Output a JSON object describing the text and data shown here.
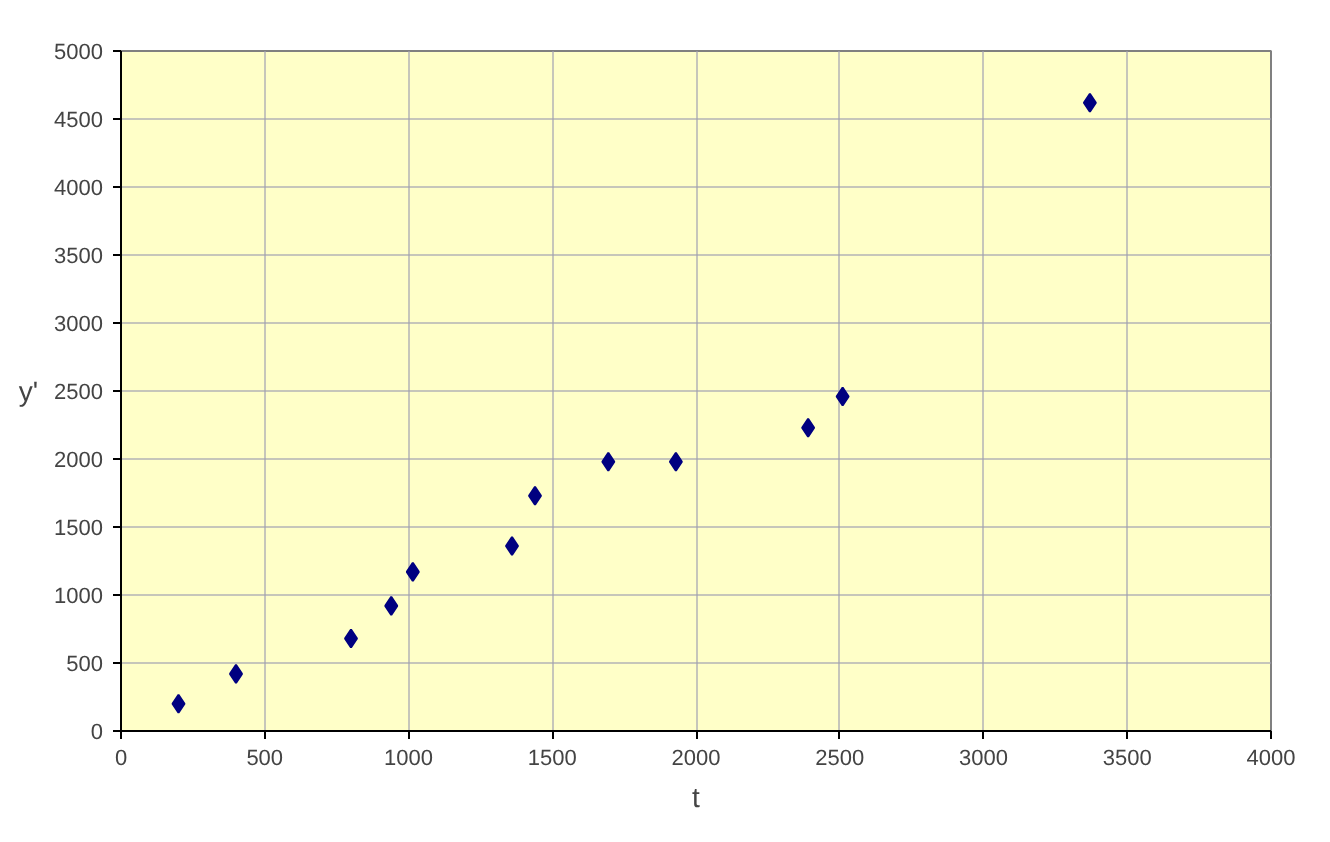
{
  "chart_data": {
    "type": "scatter",
    "xlabel": "t",
    "ylabel": "y'",
    "x": [
      200,
      400,
      800,
      940,
      1015,
      1360,
      1440,
      1695,
      1930,
      2390,
      2510,
      3370
    ],
    "series": [
      {
        "color": "#000080",
        "values": [
          200,
          420,
          680,
          920,
          1170,
          1360,
          1730,
          1980,
          1980,
          2230,
          2460,
          4620
        ]
      }
    ],
    "xlim": [
      0,
      4000
    ],
    "xticks": [
      0,
      500,
      1000,
      1500,
      2000,
      2500,
      3000,
      3500,
      4000
    ],
    "ylim": [
      0,
      5000
    ],
    "yticks": [
      0,
      500,
      1000,
      1500,
      2000,
      2500,
      3000,
      3500,
      4000,
      4500,
      5000
    ],
    "grid": true,
    "marker": "diamond"
  }
}
